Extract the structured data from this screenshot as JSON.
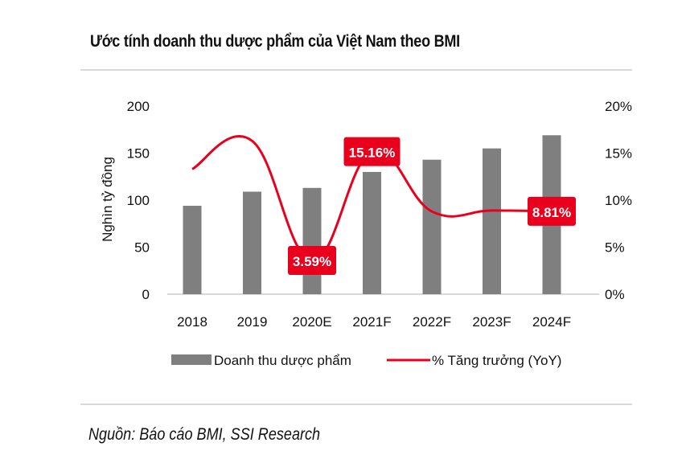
{
  "title": "Ước tính doanh thu dược phẩm của Việt Nam theo BMI",
  "source": "Nguồn: Báo cáo BMI, SSI Research",
  "chart_data": {
    "type": "bar",
    "title": "Ước tính doanh thu dược phẩm của Việt Nam theo BMI",
    "categories": [
      "2018",
      "2019",
      "2020E",
      "2021F",
      "2022F",
      "2023F",
      "2024F"
    ],
    "ylabel": "Nghìn tỷ đồng",
    "ylim": [
      0,
      200
    ],
    "yticks": [
      "0",
      "50",
      "100",
      "150",
      "200"
    ],
    "y2lim": [
      0,
      20
    ],
    "y2ticks": [
      "0%",
      "5%",
      "10%",
      "15%",
      "20%"
    ],
    "grid": false,
    "legend_position": "bottom",
    "colors": {
      "bar": "#7f7f7f",
      "line": "#e8001c",
      "label_bg": "#e8001c"
    },
    "series": [
      {
        "name": "Doanh thu dược phẩm",
        "type": "bar",
        "axis": "left",
        "values": [
          94,
          109,
          113,
          130,
          143,
          155,
          169
        ]
      },
      {
        "name": "% Tăng trưởng (YoY)",
        "type": "line",
        "axis": "right",
        "smooth": true,
        "values": [
          13.3,
          16.3,
          3.59,
          15.16,
          8.8,
          8.9,
          8.81
        ]
      }
    ],
    "annotations": [
      {
        "category": "2020E",
        "text": "3.59%"
      },
      {
        "category": "2021F",
        "text": "15.16%"
      },
      {
        "category": "2024F",
        "text": "8.81%"
      }
    ]
  }
}
